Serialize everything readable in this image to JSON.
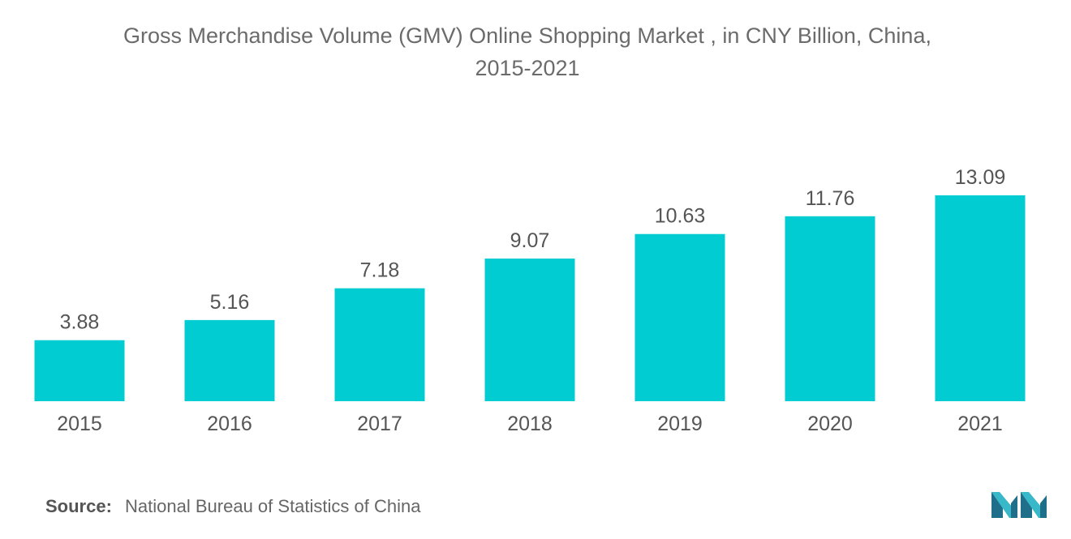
{
  "title_line1": "Gross Merchandise Volume (GMV) Online Shopping Market , in CNY Billion, China,",
  "title_line2": "2015-2021",
  "source": {
    "label": "Source:",
    "text": "National Bureau of Statistics of China"
  },
  "logo": {
    "icon": "mordor-intelligence-logo-icon",
    "colors": [
      "#1f6f8b",
      "#39b8c9"
    ]
  },
  "colors": {
    "bar": "#00ccd1",
    "text": "#555555"
  },
  "chart_data": {
    "type": "bar",
    "title": "Gross Merchandise Volume (GMV) Online Shopping Market , in CNY Billion, China, 2015-2021",
    "categories": [
      "2015",
      "2016",
      "2017",
      "2018",
      "2019",
      "2020",
      "2021"
    ],
    "values": [
      3.88,
      5.16,
      7.18,
      9.07,
      10.63,
      11.76,
      13.09
    ],
    "value_labels": [
      "3.88",
      "5.16",
      "7.18",
      "9.07",
      "10.63",
      "11.76",
      "13.09"
    ],
    "xlabel": "",
    "ylabel": "",
    "ylim": [
      0,
      13.09
    ],
    "grid": false,
    "legend": "none",
    "data_labels": true
  }
}
